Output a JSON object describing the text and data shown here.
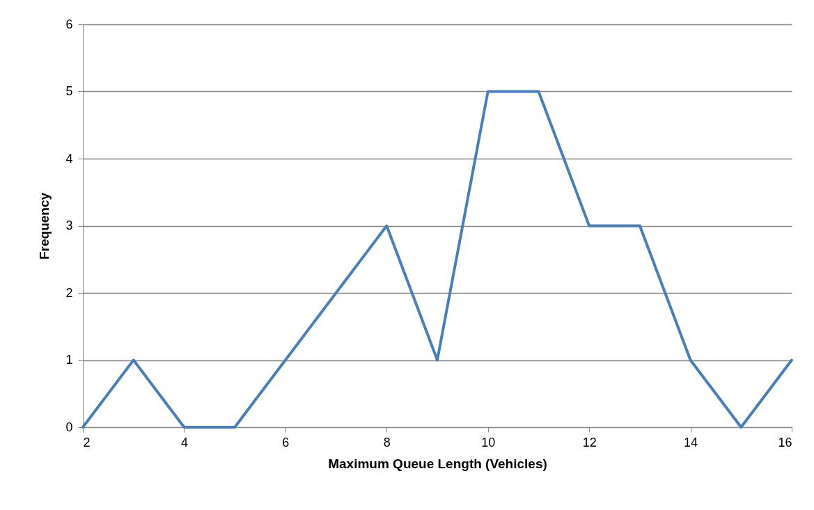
{
  "chart_data": {
    "type": "line",
    "xlabel": "Maximum Queue Length (Vehicles)",
    "ylabel": "Frequency",
    "x": [
      2,
      3,
      4,
      5,
      6,
      7,
      8,
      9,
      10,
      11,
      12,
      13,
      14,
      15,
      16
    ],
    "series": [
      {
        "color": "#4a7ebb",
        "values": [
          0,
          1,
          0,
          0,
          1,
          2,
          3,
          1,
          5,
          5,
          3,
          3,
          1,
          0,
          1
        ]
      }
    ],
    "xlim": [
      2,
      16
    ],
    "xticks": [
      2,
      4,
      6,
      8,
      10,
      12,
      14,
      16
    ],
    "ylim": [
      0,
      6
    ],
    "yticks": [
      0,
      1,
      2,
      3,
      4,
      5,
      6
    ],
    "grid": "y",
    "marker": "none",
    "line_style": "solid"
  }
}
